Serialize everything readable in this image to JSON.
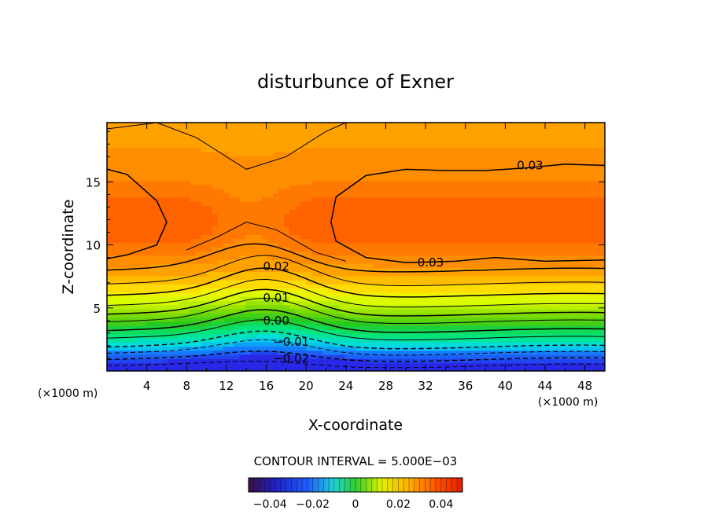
{
  "chart_data": {
    "type": "heatmap",
    "title": "disturbunce of Exner",
    "xlabel": "X-coordinate",
    "ylabel": "Z-coordinate",
    "x_unit_left": "(×1000 m)",
    "x_unit_right": "(×1000 m)",
    "xlim": [
      0,
      50
    ],
    "ylim": [
      0,
      19.7
    ],
    "x_ticks": [
      4,
      8,
      12,
      16,
      20,
      24,
      28,
      32,
      36,
      40,
      44,
      48
    ],
    "y_ticks": [
      5,
      10,
      15
    ],
    "contour_interval_text": "CONTOUR INTERVAL = 5.000E−03",
    "contour_labels": [
      {
        "text": "0.03",
        "x": 42.5,
        "z": 16.3
      },
      {
        "text": "0.03",
        "x": 32.5,
        "z": 8.6
      },
      {
        "text": "0.02",
        "x": 17,
        "z": 8.3
      },
      {
        "text": "0.01",
        "x": 17,
        "z": 5.8
      },
      {
        "text": "0.00",
        "x": 17,
        "z": 4.0
      },
      {
        "text": "−0.01",
        "x": 18.5,
        "z": 2.3
      },
      {
        "text": "−0.02",
        "x": 18.5,
        "z": 1.0
      }
    ],
    "colorbar": {
      "min": -0.05,
      "max": 0.05,
      "tick_values": [
        -0.04,
        -0.02,
        0,
        0.02,
        0.04
      ],
      "tick_labels": [
        "−0.04",
        "−0.02",
        "0",
        "0.02",
        "0.04"
      ]
    },
    "colors": {
      "low": "#2a3cff",
      "mid_low": "#00e0c0",
      "mid": "#40d020",
      "mid_high": "#ffff00",
      "high": "#ffa000",
      "max": "#ff4000"
    }
  }
}
